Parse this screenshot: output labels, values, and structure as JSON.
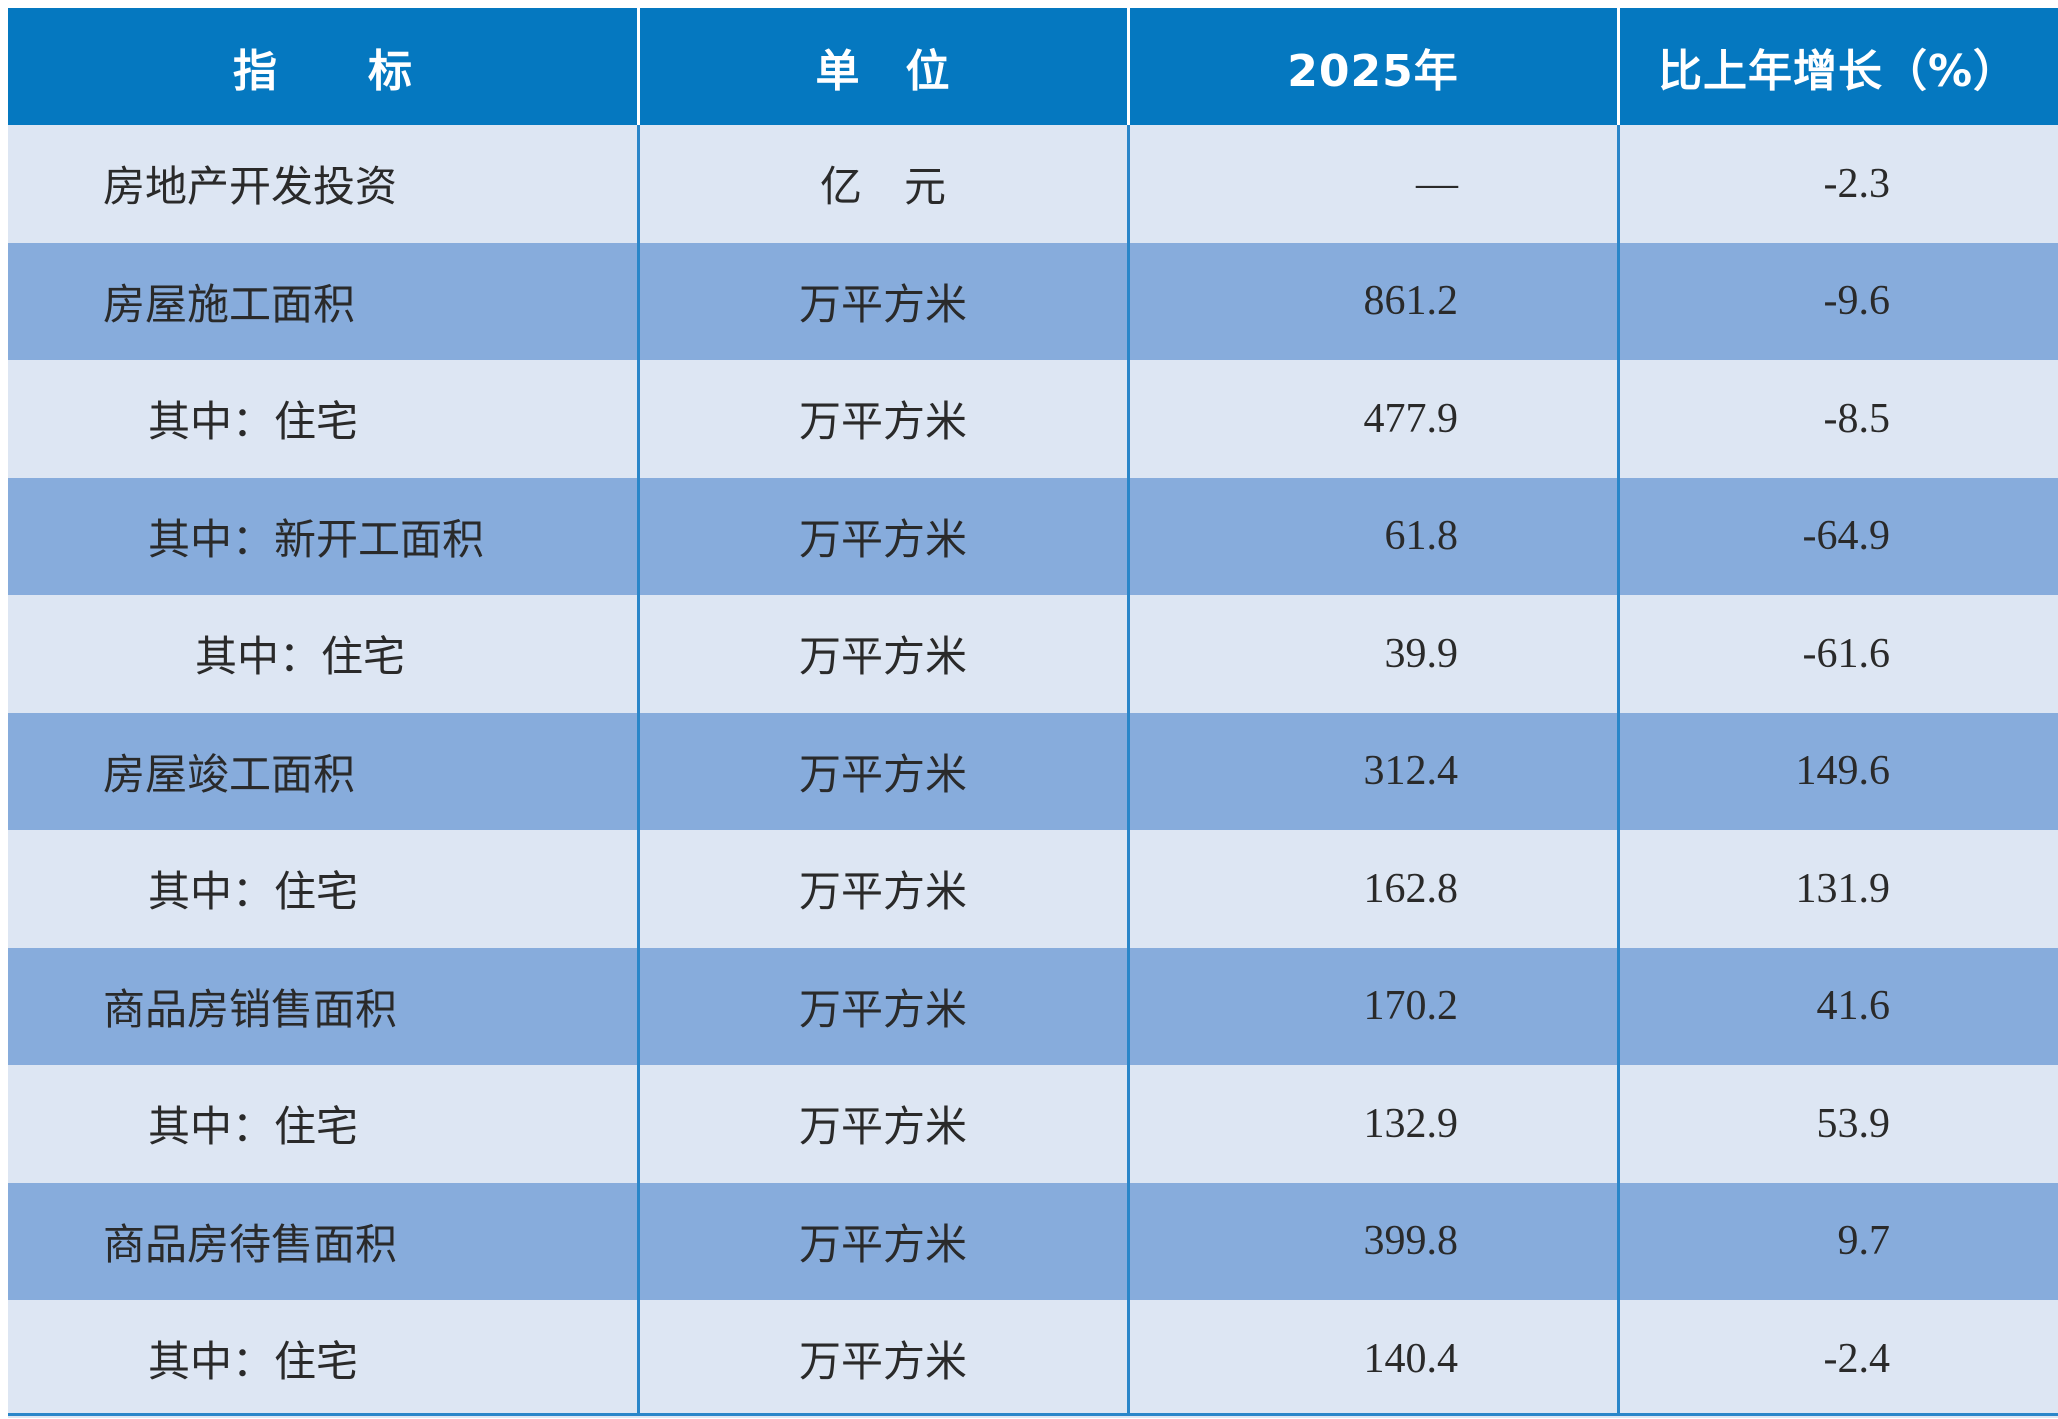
{
  "table": {
    "headers": [
      "指　　标",
      "单　位",
      "2025年",
      "比上年增长（%）"
    ],
    "rows": [
      {
        "name": "房地产开发投资",
        "indent": 0,
        "unit": "亿　元",
        "value": "—",
        "growth": "-2.3"
      },
      {
        "name": "房屋施工面积",
        "indent": 0,
        "unit": "万平方米",
        "value": "861.2",
        "growth": "-9.6"
      },
      {
        "name": "其中：住宅",
        "indent": 1,
        "unit": "万平方米",
        "value": "477.9",
        "growth": "-8.5"
      },
      {
        "name": "其中：新开工面积",
        "indent": 1,
        "unit": "万平方米",
        "value": "61.8",
        "growth": "-64.9"
      },
      {
        "name": "其中：住宅",
        "indent": 2,
        "unit": "万平方米",
        "value": "39.9",
        "growth": "-61.6"
      },
      {
        "name": "房屋竣工面积",
        "indent": 0,
        "unit": "万平方米",
        "value": "312.4",
        "growth": "149.6"
      },
      {
        "name": "其中：住宅",
        "indent": 1,
        "unit": "万平方米",
        "value": "162.8",
        "growth": "131.9"
      },
      {
        "name": "商品房销售面积",
        "indent": 0,
        "unit": "万平方米",
        "value": "170.2",
        "growth": "41.6"
      },
      {
        "name": "其中：住宅",
        "indent": 1,
        "unit": "万平方米",
        "value": "132.9",
        "growth": "53.9"
      },
      {
        "name": "商品房待售面积",
        "indent": 0,
        "unit": "万平方米",
        "value": "399.8",
        "growth": "9.7"
      },
      {
        "name": "其中：住宅",
        "indent": 1,
        "unit": "万平方米",
        "value": "140.4",
        "growth": "-2.4"
      }
    ]
  },
  "colors": {
    "header_bg": "#0578c0",
    "row_light": "#dde6f3",
    "row_dark": "#87acdc",
    "grid_line": "#2a86c9"
  }
}
